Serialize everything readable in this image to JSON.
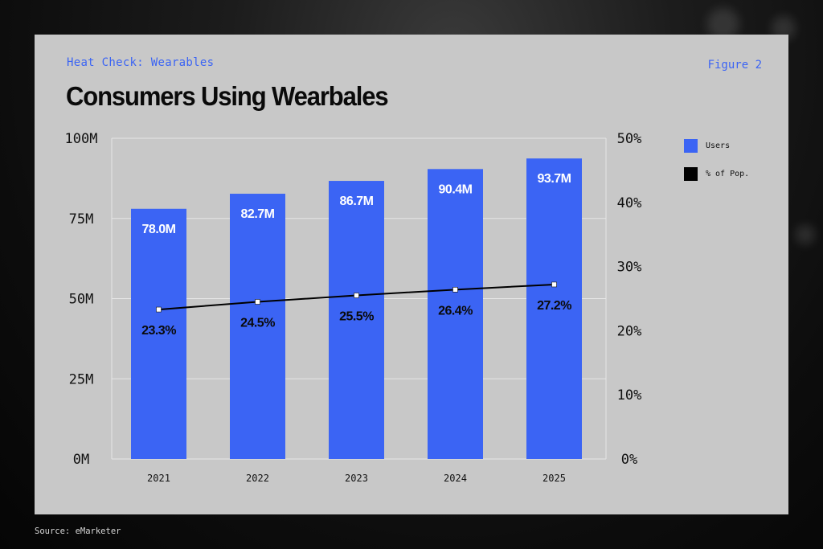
{
  "header": {
    "eyebrow": "Heat Check: Wearables",
    "figure": "Figure 2",
    "title": "Consumers Using Wearbales"
  },
  "legend": {
    "items": [
      {
        "label": "Users",
        "color": "#3b64f4"
      },
      {
        "label": "% of Pop.",
        "color": "#000000"
      }
    ]
  },
  "footer": {
    "source": "Source: eMarketer"
  },
  "chart_data": {
    "type": "bar",
    "categories": [
      "2021",
      "2022",
      "2023",
      "2024",
      "2025"
    ],
    "series": [
      {
        "name": "Users",
        "type": "bar",
        "axis": "left",
        "values": [
          78.0,
          82.7,
          86.7,
          90.4,
          93.7
        ],
        "labels": [
          "78.0M",
          "82.7M",
          "86.7M",
          "90.4M",
          "93.7M"
        ],
        "color": "#3b64f4"
      },
      {
        "name": "% of Pop.",
        "type": "line",
        "axis": "right",
        "values": [
          23.3,
          24.5,
          25.5,
          26.4,
          27.2
        ],
        "labels": [
          "23.3%",
          "24.5%",
          "25.5%",
          "26.4%",
          "27.2%"
        ],
        "color": "#000000"
      }
    ],
    "y_left": {
      "ticks": [
        "0M",
        "25M",
        "50M",
        "75M",
        "100M"
      ],
      "lim": [
        0,
        100
      ]
    },
    "y_right": {
      "ticks": [
        "0%",
        "10%",
        "20%",
        "30%",
        "40%",
        "50%"
      ],
      "lim": [
        0,
        50
      ]
    },
    "grid": true,
    "legend_position": "right"
  }
}
